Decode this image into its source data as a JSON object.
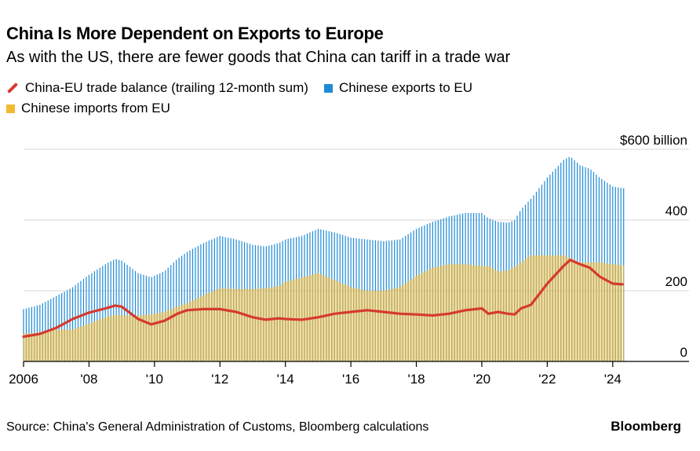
{
  "title": "China Is More Dependent on Exports to Europe",
  "subtitle": "As with the US, there are fewer goods that China can tariff in a trade war",
  "source": "Source: China's General Administration of Customs, Bloomberg calculations",
  "brand": "Bloomberg",
  "colors": {
    "exports": "#1f8ad6",
    "imports": "#f2b933",
    "balance": "#d63a2f",
    "grid": "#d9d9d9",
    "axis": "#000000"
  },
  "chart_data": {
    "type": "bar",
    "legend_placement": "top-left",
    "grid": true,
    "xlim": [
      2006,
      2024.7
    ],
    "ylim": [
      0,
      600
    ],
    "ylabel": "",
    "xlabel": "",
    "y_ticks": [
      {
        "value": 0,
        "label": "0"
      },
      {
        "value": 200,
        "label": "200"
      },
      {
        "value": 400,
        "label": "400"
      },
      {
        "value": 600,
        "label": "$600 billion"
      }
    ],
    "x_ticks": [
      {
        "value": 2006,
        "label": "2006"
      },
      {
        "value": 2008,
        "label": "'08"
      },
      {
        "value": 2010,
        "label": "'10"
      },
      {
        "value": 2012,
        "label": "'12"
      },
      {
        "value": 2014,
        "label": "'14"
      },
      {
        "value": 2016,
        "label": "'16"
      },
      {
        "value": 2018,
        "label": "'18"
      },
      {
        "value": 2020,
        "label": "'20"
      },
      {
        "value": 2022,
        "label": "'22"
      },
      {
        "value": 2024,
        "label": "'24"
      }
    ],
    "series": [
      {
        "name": "China-EU trade balance (trailing 12-month sum)",
        "kind": "line",
        "x": [
          2006.0,
          2006.5,
          2007.0,
          2007.5,
          2008.0,
          2008.5,
          2008.8,
          2009.0,
          2009.5,
          2009.9,
          2010.3,
          2010.7,
          2011.0,
          2011.5,
          2012.0,
          2012.5,
          2013.0,
          2013.4,
          2013.8,
          2014.0,
          2014.5,
          2015.0,
          2015.5,
          2016.0,
          2016.5,
          2017.0,
          2017.5,
          2018.0,
          2018.5,
          2019.0,
          2019.5,
          2020.0,
          2020.2,
          2020.5,
          2020.8,
          2021.0,
          2021.2,
          2021.5,
          2022.0,
          2022.5,
          2022.7,
          2023.0,
          2023.3,
          2023.6,
          2024.0,
          2024.3
        ],
        "values": [
          70,
          78,
          95,
          120,
          138,
          150,
          158,
          155,
          120,
          105,
          115,
          135,
          145,
          148,
          148,
          140,
          125,
          118,
          122,
          120,
          118,
          125,
          135,
          140,
          145,
          140,
          135,
          133,
          130,
          135,
          145,
          150,
          135,
          140,
          135,
          133,
          150,
          160,
          220,
          270,
          287,
          275,
          265,
          240,
          220,
          218
        ]
      },
      {
        "name": "Chinese exports to EU",
        "kind": "bar",
        "x": [
          2006.0,
          2006.5,
          2007.0,
          2007.5,
          2008.0,
          2008.5,
          2008.8,
          2009.0,
          2009.5,
          2009.9,
          2010.3,
          2010.7,
          2011.0,
          2011.5,
          2012.0,
          2012.5,
          2013.0,
          2013.4,
          2013.8,
          2014.0,
          2014.5,
          2015.0,
          2015.5,
          2016.0,
          2016.5,
          2017.0,
          2017.5,
          2018.0,
          2018.5,
          2019.0,
          2019.5,
          2020.0,
          2020.2,
          2020.5,
          2020.8,
          2021.0,
          2021.2,
          2021.5,
          2022.0,
          2022.5,
          2022.7,
          2023.0,
          2023.3,
          2023.6,
          2024.0,
          2024.3
        ],
        "values": [
          148,
          160,
          185,
          210,
          245,
          275,
          290,
          285,
          250,
          238,
          255,
          290,
          310,
          335,
          355,
          345,
          330,
          325,
          335,
          345,
          355,
          375,
          365,
          350,
          345,
          340,
          345,
          375,
          395,
          410,
          420,
          420,
          405,
          395,
          392,
          400,
          430,
          460,
          520,
          570,
          580,
          555,
          545,
          520,
          495,
          490
        ]
      },
      {
        "name": "Chinese imports from EU",
        "kind": "area",
        "x": [
          2006.0,
          2006.5,
          2007.0,
          2007.5,
          2008.0,
          2008.5,
          2008.8,
          2009.0,
          2009.5,
          2009.9,
          2010.3,
          2010.7,
          2011.0,
          2011.5,
          2012.0,
          2012.5,
          2013.0,
          2013.4,
          2013.8,
          2014.0,
          2014.5,
          2015.0,
          2015.5,
          2016.0,
          2016.5,
          2017.0,
          2017.5,
          2018.0,
          2018.5,
          2019.0,
          2019.5,
          2020.0,
          2020.2,
          2020.5,
          2020.8,
          2021.0,
          2021.2,
          2021.5,
          2022.0,
          2022.5,
          2022.7,
          2023.0,
          2023.3,
          2023.6,
          2024.0,
          2024.3
        ],
        "values": [
          78,
          82,
          90,
          90,
          107,
          125,
          132,
          130,
          130,
          133,
          140,
          155,
          165,
          187,
          207,
          205,
          205,
          207,
          213,
          225,
          237,
          250,
          230,
          210,
          200,
          200,
          210,
          242,
          265,
          275,
          275,
          270,
          270,
          255,
          257,
          267,
          280,
          300,
          300,
          300,
          293,
          280,
          280,
          280,
          275,
          272
        ]
      }
    ]
  }
}
